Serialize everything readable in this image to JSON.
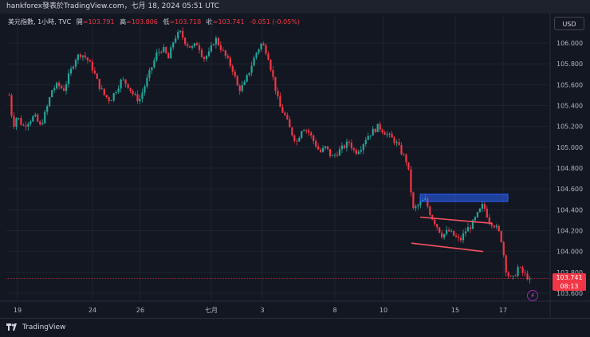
{
  "header": {
    "title": "hankforex發表於TradingView.com，七月 18, 2024 05:51 UTC"
  },
  "legend": {
    "symbol": "美元指數, 1小時, TVC",
    "open_label": "開",
    "open": "=103.791",
    "high_label": "高",
    "high": "=103.806",
    "low_label": "低",
    "low": "=103.718",
    "close_label": "收",
    "close": "=103.741",
    "change": "-0.051 (-0.05%)"
  },
  "currency": "USD",
  "price_axis": [
    "106.000",
    "105.800",
    "105.600",
    "105.400",
    "105.200",
    "105.000",
    "104.800",
    "104.600",
    "104.400",
    "104.200",
    "104.000",
    "103.800",
    "103.600"
  ],
  "price_tag": {
    "price": "103.741",
    "countdown": "08:13"
  },
  "time_axis": [
    "19",
    "24",
    "26",
    "七月",
    "3",
    "8",
    "10",
    "15",
    "17"
  ],
  "branding": {
    "name": "TradingView"
  },
  "colors": {
    "up": "#26a69a",
    "down": "#f23645",
    "background": "#131722",
    "box": "#2962ff",
    "trendline": "#f7525f"
  },
  "chart_data": {
    "type": "candlestick",
    "symbol": "美元指數",
    "interval": "1小時",
    "ylim": [
      103.6,
      106.1
    ],
    "y_ticks": [
      106.0,
      105.8,
      105.6,
      105.4,
      105.2,
      105.0,
      104.8,
      104.6,
      104.4,
      104.2,
      104.0,
      103.8,
      103.6
    ],
    "x_tick_labels": [
      "19",
      "24",
      "26",
      "七月",
      "3",
      "8",
      "10",
      "15",
      "17"
    ],
    "last_price": 103.741,
    "path_points": [
      [
        0,
        105.5
      ],
      [
        2,
        105.2
      ],
      [
        4,
        105.3
      ],
      [
        7,
        105.2
      ],
      [
        10,
        105.25
      ],
      [
        13,
        105.3
      ],
      [
        16,
        105.2
      ],
      [
        19,
        105.35
      ],
      [
        22,
        105.55
      ],
      [
        25,
        105.6
      ],
      [
        28,
        105.55
      ],
      [
        31,
        105.7
      ],
      [
        34,
        105.85
      ],
      [
        37,
        105.9
      ],
      [
        40,
        105.85
      ],
      [
        43,
        105.75
      ],
      [
        46,
        105.6
      ],
      [
        49,
        105.5
      ],
      [
        52,
        105.45
      ],
      [
        55,
        105.55
      ],
      [
        58,
        105.65
      ],
      [
        61,
        105.6
      ],
      [
        64,
        105.5
      ],
      [
        67,
        105.45
      ],
      [
        70,
        105.6
      ],
      [
        73,
        105.75
      ],
      [
        76,
        105.9
      ],
      [
        79,
        105.95
      ],
      [
        82,
        105.85
      ],
      [
        85,
        106.05
      ],
      [
        88,
        106.1
      ],
      [
        91,
        106.0
      ],
      [
        94,
        105.95
      ],
      [
        97,
        106.0
      ],
      [
        100,
        105.85
      ],
      [
        103,
        105.9
      ],
      [
        106,
        106.05
      ],
      [
        109,
        105.95
      ],
      [
        112,
        105.85
      ],
      [
        115,
        105.75
      ],
      [
        118,
        105.55
      ],
      [
        121,
        105.6
      ],
      [
        124,
        105.75
      ],
      [
        127,
        105.9
      ],
      [
        130,
        106.0
      ],
      [
        133,
        105.9
      ],
      [
        136,
        105.65
      ],
      [
        139,
        105.4
      ],
      [
        142,
        105.3
      ],
      [
        145,
        105.15
      ],
      [
        148,
        105.05
      ],
      [
        151,
        105.2
      ],
      [
        154,
        105.15
      ],
      [
        157,
        105.05
      ],
      [
        160,
        104.95
      ],
      [
        163,
        105.0
      ],
      [
        166,
        104.9
      ],
      [
        169,
        104.95
      ],
      [
        172,
        105.0
      ],
      [
        175,
        105.05
      ],
      [
        178,
        104.95
      ],
      [
        181,
        105.0
      ],
      [
        184,
        105.1
      ],
      [
        187,
        105.15
      ],
      [
        190,
        105.2
      ],
      [
        193,
        105.15
      ],
      [
        196,
        105.1
      ],
      [
        199,
        105.05
      ],
      [
        202,
        104.95
      ],
      [
        205,
        104.85
      ],
      [
        208,
        104.4
      ],
      [
        211,
        104.45
      ],
      [
        214,
        104.5
      ],
      [
        217,
        104.35
      ],
      [
        220,
        104.25
      ],
      [
        223,
        104.15
      ],
      [
        226,
        104.2
      ],
      [
        229,
        104.15
      ],
      [
        232,
        104.1
      ],
      [
        235,
        104.2
      ],
      [
        238,
        104.25
      ],
      [
        241,
        104.35
      ],
      [
        244,
        104.45
      ],
      [
        247,
        104.3
      ],
      [
        250,
        104.25
      ],
      [
        253,
        104.15
      ],
      [
        256,
        103.8
      ],
      [
        259,
        103.72
      ],
      [
        262,
        103.85
      ],
      [
        265,
        103.78
      ],
      [
        268,
        103.741
      ]
    ],
    "annotations": [
      {
        "type": "rectangle",
        "price_top": 104.55,
        "price_bottom": 104.48,
        "color": "#2962ff"
      },
      {
        "type": "trendline",
        "from": 104.33,
        "to": 104.27
      },
      {
        "type": "trendline",
        "from": 104.08,
        "to": 104.0
      }
    ]
  }
}
